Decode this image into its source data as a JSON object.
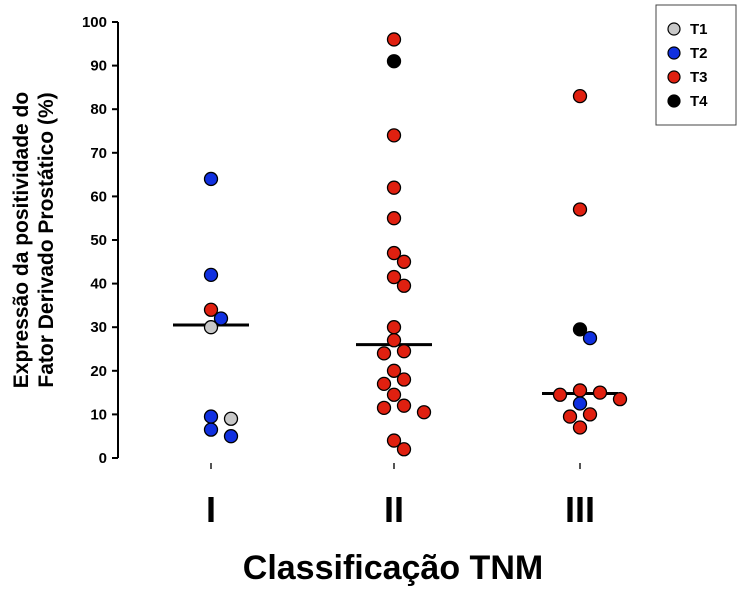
{
  "chart_data": {
    "type": "scatter",
    "title": "",
    "xlabel": "Classificação TNM",
    "ylabel_line1": "Expressão da positividade do",
    "ylabel_line2": "Fator Derivado Prostático (%)",
    "ylim": [
      0,
      100
    ],
    "yticks": [
      "0",
      "10",
      "20",
      "30",
      "40",
      "50",
      "60",
      "70",
      "80",
      "90",
      "100"
    ],
    "categories": [
      "I",
      "II",
      "III"
    ],
    "grid": false,
    "legend_position": "top-right",
    "series": [
      {
        "name": "T1",
        "color": "#c8c8c8",
        "points": [
          {
            "category": "I",
            "y": 30
          },
          {
            "category": "I",
            "y": 9
          }
        ]
      },
      {
        "name": "T2",
        "color": "#1030e0",
        "points": [
          {
            "category": "I",
            "y": 64
          },
          {
            "category": "I",
            "y": 42
          },
          {
            "category": "I",
            "y": 32
          },
          {
            "category": "I",
            "y": 9.5
          },
          {
            "category": "I",
            "y": 6.5
          },
          {
            "category": "I",
            "y": 5
          },
          {
            "category": "III",
            "y": 27.5
          },
          {
            "category": "III",
            "y": 12.5
          }
        ]
      },
      {
        "name": "T3",
        "color": "#e02010",
        "points": [
          {
            "category": "I",
            "y": 34
          },
          {
            "category": "II",
            "y": 96
          },
          {
            "category": "II",
            "y": 74
          },
          {
            "category": "II",
            "y": 62
          },
          {
            "category": "II",
            "y": 55
          },
          {
            "category": "II",
            "y": 47
          },
          {
            "category": "II",
            "y": 45
          },
          {
            "category": "II",
            "y": 41.5
          },
          {
            "category": "II",
            "y": 39.5
          },
          {
            "category": "II",
            "y": 30
          },
          {
            "category": "II",
            "y": 27
          },
          {
            "category": "II",
            "y": 24.5
          },
          {
            "category": "II",
            "y": 24
          },
          {
            "category": "II",
            "y": 20
          },
          {
            "category": "II",
            "y": 18
          },
          {
            "category": "II",
            "y": 17
          },
          {
            "category": "II",
            "y": 14.5
          },
          {
            "category": "II",
            "y": 12
          },
          {
            "category": "II",
            "y": 11.5
          },
          {
            "category": "II",
            "y": 10.5
          },
          {
            "category": "II",
            "y": 4
          },
          {
            "category": "II",
            "y": 2
          },
          {
            "category": "III",
            "y": 83
          },
          {
            "category": "III",
            "y": 57
          },
          {
            "category": "III",
            "y": 15.5
          },
          {
            "category": "III",
            "y": 15
          },
          {
            "category": "III",
            "y": 14.5
          },
          {
            "category": "III",
            "y": 13.5
          },
          {
            "category": "III",
            "y": 10
          },
          {
            "category": "III",
            "y": 9.5
          },
          {
            "category": "III",
            "y": 7
          }
        ]
      },
      {
        "name": "T4",
        "color": "#000000",
        "points": [
          {
            "category": "II",
            "y": 91
          },
          {
            "category": "III",
            "y": 29.5
          }
        ]
      }
    ],
    "medians": [
      {
        "category": "I",
        "y": 30.5
      },
      {
        "category": "II",
        "y": 26
      },
      {
        "category": "III",
        "y": 14.8
      }
    ]
  }
}
